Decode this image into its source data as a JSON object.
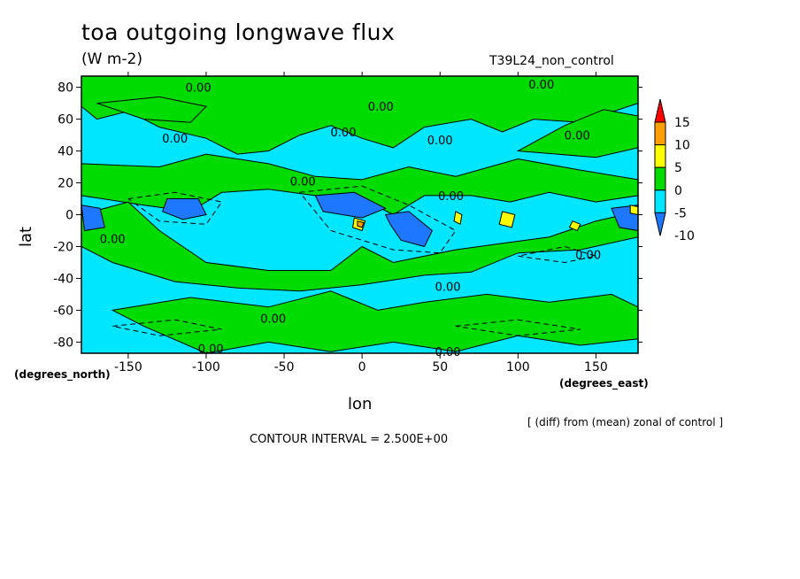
{
  "chart_data": {
    "type": "contour",
    "title": "toa outgoing longwave flux",
    "units": "(W m-2)",
    "dataset": "T39L24_non_control",
    "xlabel": "lon",
    "ylabel": "lat",
    "x_units": "(degrees_east)",
    "y_units": "(degrees_north)",
    "xlim": [
      -180,
      177
    ],
    "ylim": [
      -87,
      87
    ],
    "x_ticks": [
      -150,
      -100,
      -50,
      0,
      50,
      100,
      150
    ],
    "y_ticks": [
      80,
      60,
      40,
      20,
      0,
      -20,
      -40,
      -60,
      -80
    ],
    "x_tick_labels": [
      "-150",
      "-100",
      "-50",
      "0",
      "50",
      "100",
      "150"
    ],
    "y_tick_labels": [
      "80",
      "60",
      "40",
      "20",
      "0",
      "-20",
      "-40",
      "-60",
      "-80"
    ],
    "contour_interval": "2.500E+00",
    "contour_labels": [
      {
        "text": "0.00",
        "lon": -105,
        "lat": 80
      },
      {
        "text": "0.00",
        "lon": 115,
        "lat": 82
      },
      {
        "text": "0.00",
        "lon": 12,
        "lat": 68
      },
      {
        "text": "0.00",
        "lon": -120,
        "lat": 48
      },
      {
        "text": "0.00",
        "lon": -12,
        "lat": 52
      },
      {
        "text": "0.00",
        "lon": 50,
        "lat": 47
      },
      {
        "text": "0.00",
        "lon": 138,
        "lat": 50
      },
      {
        "text": "0.00",
        "lon": -38,
        "lat": 21
      },
      {
        "text": "0.00",
        "lon": 57,
        "lat": 12
      },
      {
        "text": "0.00",
        "lon": -160,
        "lat": -15
      },
      {
        "text": "0.00",
        "lon": 145,
        "lat": -25
      },
      {
        "text": "0.00",
        "lon": 55,
        "lat": -45
      },
      {
        "text": "0.00",
        "lon": -57,
        "lat": -65
      },
      {
        "text": "0.00",
        "lon": -97,
        "lat": -84
      },
      {
        "text": "0.00",
        "lon": 55,
        "lat": -86
      }
    ],
    "colorbar": {
      "levels": [
        "-10",
        "-5",
        "0",
        "5",
        "10",
        "15"
      ],
      "colors": [
        "#1e78ff",
        "#00e6ff",
        "#00dc00",
        "#ffff00",
        "#ffa000",
        "#ff0000"
      ]
    }
  },
  "annotations": {
    "note": "[ (diff) from (mean) zonal of control ]",
    "interval_text": "CONTOUR INTERVAL = 2.500E+00"
  }
}
